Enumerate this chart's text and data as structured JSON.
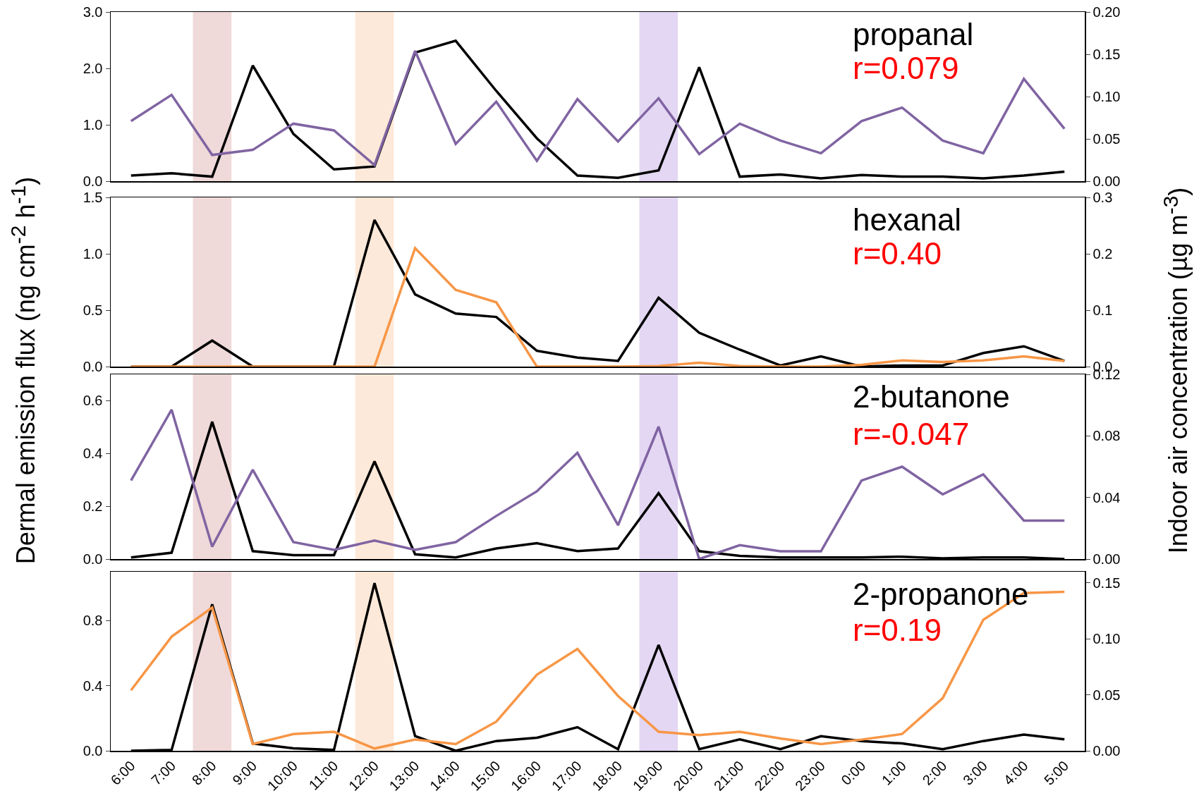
{
  "chart_data": [
    {
      "type": "line",
      "title": "propanal",
      "annotations": [
        "r=0.079"
      ],
      "ylabel": "Dermal emission flux (ng cm$^{-2}$ h$^{-1}$)",
      "y2label": "Indoor air concentration (µg m$^{-3}$)",
      "marker": "none",
      "line_style": "solid",
      "tick_labels": "y",
      "categories": [
        "6:00",
        "7:00",
        "8:00",
        "9:00",
        "10:00",
        "11:00",
        "12:00",
        "13:00",
        "14:00",
        "15:00",
        "16:00",
        "17:00",
        "18:00",
        "19:00",
        "20:00",
        "21:00",
        "22:00",
        "23:00",
        "0:00",
        "1:00",
        "2:00",
        "3:00",
        "4:00",
        "5:00"
      ],
      "ylim": [
        0,
        3
      ],
      "yticks": [
        {
          "value": 0,
          "label": "0.0"
        },
        {
          "value": 1,
          "label": "1.0"
        },
        {
          "value": 2,
          "label": "2.0"
        },
        {
          "value": 3,
          "label": "3.0"
        }
      ],
      "y2lim": [
        0,
        0.2
      ],
      "y2ticks": [
        {
          "value": 0,
          "label": "0.00"
        },
        {
          "value": 0.05,
          "label": "0.05"
        },
        {
          "value": 0.1,
          "label": "0.10"
        },
        {
          "value": 0.15,
          "label": "0.15"
        },
        {
          "value": 0.2,
          "label": "0.20"
        }
      ],
      "bands": [
        {
          "axis": "x",
          "from": "8:00",
          "to": "8:00",
          "color": "#efd9d9"
        },
        {
          "axis": "x",
          "from": "12:00",
          "to": "12:00",
          "color": "#fde9d9"
        },
        {
          "axis": "x",
          "from": "19:00",
          "to": "19:00",
          "color": "#e4d7f3"
        }
      ],
      "series": [
        {
          "color": "#000000",
          "values": [
            0.1,
            0.14,
            0.08,
            2.05,
            0.84,
            0.21,
            0.26,
            2.28,
            2.49,
            1.6,
            0.76,
            0.1,
            0.06,
            0.19,
            2.02,
            0.08,
            0.12,
            0.05,
            0.11,
            0.08,
            0.08,
            0.05,
            0.1,
            0.17
          ]
        },
        {
          "color": "#8064a2",
          "axis": "y2",
          "values": [
            0.071,
            0.102,
            0.031,
            0.037,
            0.068,
            0.06,
            0.019,
            0.154,
            0.044,
            0.094,
            0.024,
            0.097,
            0.047,
            0.098,
            0.032,
            0.068,
            0.048,
            0.033,
            0.071,
            0.087,
            0.048,
            0.033,
            0.121,
            0.062
          ]
        }
      ]
    },
    {
      "type": "line",
      "title": "hexanal",
      "annotations": [
        "r=0.40"
      ],
      "marker": "none",
      "line_style": "solid",
      "tick_labels": "y",
      "categories": [
        "6:00",
        "7:00",
        "8:00",
        "9:00",
        "10:00",
        "11:00",
        "12:00",
        "13:00",
        "14:00",
        "15:00",
        "16:00",
        "17:00",
        "18:00",
        "19:00",
        "20:00",
        "21:00",
        "22:00",
        "23:00",
        "0:00",
        "1:00",
        "2:00",
        "3:00",
        "4:00",
        "5:00"
      ],
      "ylim": [
        0,
        1.5
      ],
      "yticks": [
        {
          "value": 0,
          "label": "0.0"
        },
        0.5,
        {
          "value": 1,
          "label": "1.0"
        },
        1.5
      ],
      "y2lim": [
        0,
        0.3
      ],
      "y2ticks": [
        {
          "value": 0,
          "label": "0.0"
        },
        0.1,
        0.2,
        0.3
      ],
      "bands": [
        {
          "axis": "x",
          "from": "8:00",
          "to": "8:00",
          "color": "#efd9d9"
        },
        {
          "axis": "x",
          "from": "12:00",
          "to": "12:00",
          "color": "#fde9d9"
        },
        {
          "axis": "x",
          "from": "19:00",
          "to": "19:00",
          "color": "#e4d7f3"
        }
      ],
      "series": [
        {
          "color": "#000000",
          "values": [
            0,
            0,
            0.23,
            0,
            0,
            0,
            1.3,
            0.64,
            0.47,
            0.44,
            0.14,
            0.08,
            0.05,
            0.61,
            0.3,
            0.15,
            0.01,
            0.09,
            0,
            0.01,
            0.01,
            0.12,
            0.18,
            0.05
          ]
        },
        {
          "color": "#f79646",
          "axis": "y2",
          "values": [
            0,
            0,
            0,
            0,
            0,
            0,
            0,
            0.21,
            0.136,
            0.114,
            0,
            0,
            0,
            0.001,
            0.007,
            0.001,
            0,
            0,
            0.003,
            0.011,
            0.008,
            0.011,
            0.018,
            0.01
          ]
        }
      ]
    },
    {
      "type": "line",
      "title": "2-butanone",
      "annotations": [
        "r=-0.047"
      ],
      "marker": "none",
      "line_style": "solid",
      "tick_labels": "y",
      "categories": [
        "6:00",
        "7:00",
        "8:00",
        "9:00",
        "10:00",
        "11:00",
        "12:00",
        "13:00",
        "14:00",
        "15:00",
        "16:00",
        "17:00",
        "18:00",
        "19:00",
        "20:00",
        "21:00",
        "22:00",
        "23:00",
        "0:00",
        "1:00",
        "2:00",
        "3:00",
        "4:00",
        "5:00"
      ],
      "ylim": [
        0,
        0.7
      ],
      "yticks": [
        {
          "value": 0,
          "label": "0.0"
        },
        0.2,
        0.4,
        0.6
      ],
      "y2lim": [
        0,
        0.12
      ],
      "y2ticks": [
        {
          "value": 0,
          "label": "0.00"
        },
        0.04,
        0.08,
        0.12
      ],
      "bands": [
        {
          "axis": "x",
          "from": "8:00",
          "to": "8:00",
          "color": "#efd9d9"
        },
        {
          "axis": "x",
          "from": "12:00",
          "to": "12:00",
          "color": "#fde9d9"
        },
        {
          "axis": "x",
          "from": "19:00",
          "to": "19:00",
          "color": "#e4d7f3"
        }
      ],
      "series": [
        {
          "color": "#000000",
          "values": [
            0.006,
            0.024,
            0.52,
            0.03,
            0.015,
            0.015,
            0.37,
            0.018,
            0.006,
            0.04,
            0.06,
            0.03,
            0.04,
            0.25,
            0.03,
            0.012,
            0.006,
            0.006,
            0.006,
            0.009,
            0.003,
            0.006,
            0.006,
            0
          ]
        },
        {
          "color": "#8064a2",
          "axis": "y2",
          "values": [
            0.051,
            0.097,
            0.008,
            0.058,
            0.011,
            0.006,
            0.012,
            0.006,
            0.011,
            0.028,
            0.044,
            0.069,
            0.022,
            0.086,
            0,
            0.009,
            0.005,
            0.005,
            0.051,
            0.06,
            0.042,
            0.055,
            0.025,
            0.025
          ]
        }
      ]
    },
    {
      "type": "line",
      "title": "2-propanone",
      "annotations": [
        "r=0.19"
      ],
      "marker": "none",
      "line_style": "solid",
      "categories": [
        "6:00",
        "7:00",
        "8:00",
        "9:00",
        "10:00",
        "11:00",
        "12:00",
        "13:00",
        "14:00",
        "15:00",
        "16:00",
        "17:00",
        "18:00",
        "19:00",
        "20:00",
        "21:00",
        "22:00",
        "23:00",
        "0:00",
        "1:00",
        "2:00",
        "3:00",
        "4:00",
        "5:00"
      ],
      "ylim": [
        0,
        1.1
      ],
      "yticks": [
        {
          "value": 0,
          "label": "0.0"
        },
        0.4,
        0.8
      ],
      "y2lim": [
        0,
        0.16
      ],
      "y2ticks": [
        {
          "value": 0,
          "label": "0.00"
        },
        0.05,
        {
          "value": 0.1,
          "label": "0.10"
        },
        0.15
      ],
      "bands": [
        {
          "axis": "x",
          "from": "8:00",
          "to": "8:00",
          "color": "#efd9d9"
        },
        {
          "axis": "x",
          "from": "12:00",
          "to": "12:00",
          "color": "#fde9d9"
        },
        {
          "axis": "x",
          "from": "19:00",
          "to": "19:00",
          "color": "#e4d7f3"
        }
      ],
      "series": [
        {
          "color": "#000000",
          "values": [
            0,
            0.005,
            0.9,
            0.045,
            0.015,
            0.005,
            1.03,
            0.09,
            0,
            0.06,
            0.08,
            0.145,
            0.01,
            0.65,
            0.01,
            0.07,
            0.01,
            0.09,
            0.06,
            0.045,
            0.01,
            0.06,
            0.1,
            0.07
          ]
        },
        {
          "color": "#f79646",
          "axis": "y2",
          "values": [
            0.054,
            0.102,
            0.128,
            0.006,
            0.015,
            0.017,
            0.002,
            0.01,
            0.006,
            0.026,
            0.068,
            0.091,
            0.049,
            0.017,
            0.014,
            0.017,
            0.011,
            0.006,
            0.01,
            0.015,
            0.047,
            0.117,
            0.141,
            0.142
          ]
        }
      ]
    }
  ]
}
